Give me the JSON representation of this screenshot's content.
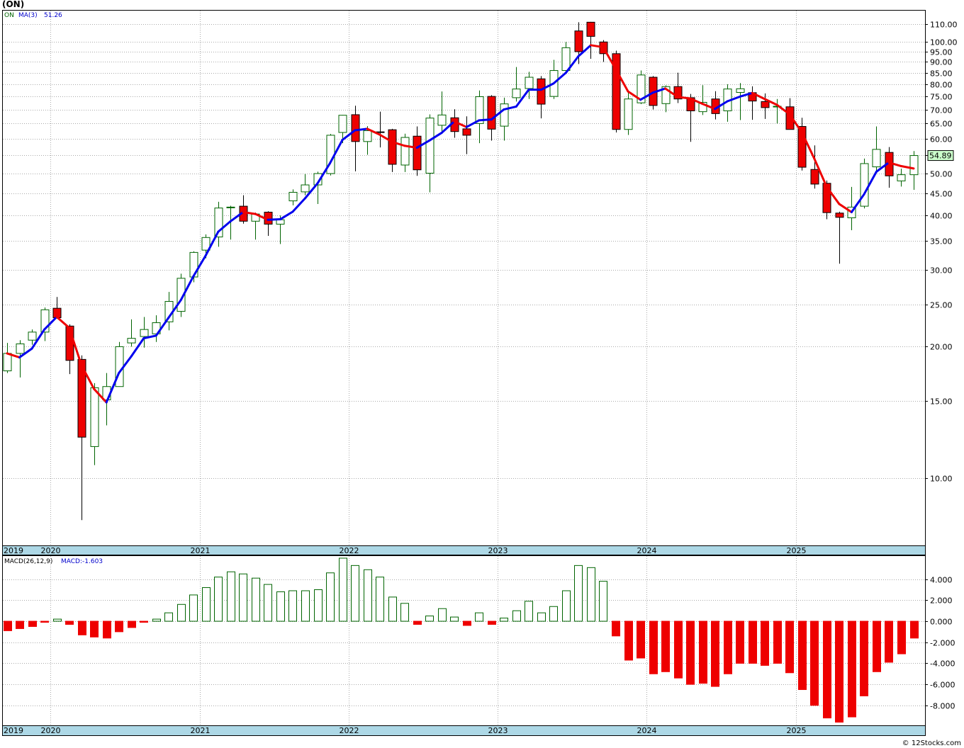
{
  "ticker_label": "(ON)",
  "credit": "© 12Stocks.com",
  "price_legend": {
    "symbol": "ON",
    "ma_label": "MA(3)",
    "ma_value": "51.26"
  },
  "macd_legend": {
    "label": "MACD(26,12,9)",
    "value_label": "MACD:-1.603"
  },
  "last_price_label": "54.89",
  "colors": {
    "up_candle_outline": "#006400",
    "down_candle_fill": "#ee0000",
    "ma_rising": "#0000ee",
    "ma_falling": "#ee0000",
    "axis_band": "#add8e6",
    "grid": "#aaaaaa",
    "last_price_badge": "#ccffcc"
  },
  "chart_data": [
    {
      "type": "candlestick",
      "scale": "log",
      "y_ticks": [
        "10.00",
        "15.00",
        "20.00",
        "25.00",
        "30.00",
        "35.00",
        "40.00",
        "45.00",
        "50.00",
        "55.00",
        "60.00",
        "65.00",
        "70.00",
        "75.00",
        "80.00",
        "85.00",
        "90.00",
        "95.00",
        "100.00",
        "110.00"
      ],
      "x_ticks": [
        "2019",
        "2020",
        "2021",
        "2022",
        "2023",
        "2024",
        "2025"
      ],
      "candles": [
        {
          "o": 17.6,
          "h": 20.4,
          "l": 17.4,
          "c": 19.3
        },
        {
          "o": 19.3,
          "h": 20.7,
          "l": 17.0,
          "c": 20.3
        },
        {
          "o": 20.7,
          "h": 21.9,
          "l": 20.2,
          "c": 21.6
        },
        {
          "o": 21.6,
          "h": 24.6,
          "l": 20.6,
          "c": 24.3
        },
        {
          "o": 24.5,
          "h": 26.0,
          "l": 23.2,
          "c": 23.3
        },
        {
          "o": 22.3,
          "h": 22.5,
          "l": 17.3,
          "c": 18.6
        },
        {
          "o": 18.7,
          "h": 19.1,
          "l": 8.0,
          "c": 12.4
        },
        {
          "o": 11.8,
          "h": 16.5,
          "l": 10.7,
          "c": 16.1
        },
        {
          "o": 15.1,
          "h": 17.4,
          "l": 13.2,
          "c": 16.2
        },
        {
          "o": 16.2,
          "h": 20.5,
          "l": 16.2,
          "c": 20.0
        },
        {
          "o": 20.4,
          "h": 23.1,
          "l": 20.0,
          "c": 20.9
        },
        {
          "o": 21.1,
          "h": 23.4,
          "l": 19.9,
          "c": 21.9
        },
        {
          "o": 21.4,
          "h": 23.6,
          "l": 20.5,
          "c": 22.7
        },
        {
          "o": 22.8,
          "h": 26.7,
          "l": 21.8,
          "c": 25.4
        },
        {
          "o": 24.1,
          "h": 29.4,
          "l": 23.4,
          "c": 28.7
        },
        {
          "o": 28.9,
          "h": 33.1,
          "l": 28.1,
          "c": 32.9
        },
        {
          "o": 33.3,
          "h": 36.2,
          "l": 31.9,
          "c": 35.6
        },
        {
          "o": 35.7,
          "h": 43.0,
          "l": 33.9,
          "c": 41.6
        },
        {
          "o": 41.7,
          "h": 42.1,
          "l": 35.2,
          "c": 41.8
        },
        {
          "o": 42.0,
          "h": 44.5,
          "l": 38.3,
          "c": 38.8
        },
        {
          "o": 38.8,
          "h": 40.6,
          "l": 35.2,
          "c": 40.3
        },
        {
          "o": 40.7,
          "h": 40.9,
          "l": 35.9,
          "c": 38.2
        },
        {
          "o": 38.2,
          "h": 40.0,
          "l": 34.4,
          "c": 39.1
        },
        {
          "o": 43.2,
          "h": 45.9,
          "l": 42.2,
          "c": 45.2
        },
        {
          "o": 45.3,
          "h": 49.8,
          "l": 44.5,
          "c": 47.0
        },
        {
          "o": 47.0,
          "h": 50.4,
          "l": 42.5,
          "c": 49.9
        },
        {
          "o": 49.9,
          "h": 61.5,
          "l": 49.4,
          "c": 61.1
        },
        {
          "o": 62.0,
          "h": 68.0,
          "l": 58.6,
          "c": 67.9
        },
        {
          "o": 68.1,
          "h": 71.4,
          "l": 50.5,
          "c": 59.1
        },
        {
          "o": 59.1,
          "h": 64.1,
          "l": 55.1,
          "c": 62.6
        },
        {
          "o": 62.2,
          "h": 69.2,
          "l": 57.3,
          "c": 62.1
        },
        {
          "o": 62.9,
          "h": 63.2,
          "l": 50.3,
          "c": 52.4
        },
        {
          "o": 52.2,
          "h": 61.6,
          "l": 50.3,
          "c": 60.4
        },
        {
          "o": 60.8,
          "h": 64.0,
          "l": 49.3,
          "c": 50.9
        },
        {
          "o": 50.0,
          "h": 68.2,
          "l": 45.2,
          "c": 66.9
        },
        {
          "o": 64.4,
          "h": 77.0,
          "l": 62.1,
          "c": 68.0
        },
        {
          "o": 67.0,
          "h": 70.1,
          "l": 60.3,
          "c": 62.3
        },
        {
          "o": 63.2,
          "h": 67.5,
          "l": 55.3,
          "c": 61.1
        },
        {
          "o": 65.0,
          "h": 77.4,
          "l": 58.6,
          "c": 74.9
        },
        {
          "o": 75.0,
          "h": 75.5,
          "l": 59.4,
          "c": 63.1
        },
        {
          "o": 64.1,
          "h": 74.5,
          "l": 59.4,
          "c": 72.1
        },
        {
          "o": 74.5,
          "h": 87.6,
          "l": 73.0,
          "c": 78.0
        },
        {
          "o": 78.2,
          "h": 85.4,
          "l": 74.0,
          "c": 83.0
        },
        {
          "o": 82.3,
          "h": 83.5,
          "l": 66.8,
          "c": 72.0
        },
        {
          "o": 75.0,
          "h": 91.0,
          "l": 74.0,
          "c": 86.0
        },
        {
          "o": 86.0,
          "h": 100.0,
          "l": 85.7,
          "c": 97.0
        },
        {
          "o": 106.0,
          "h": 111.0,
          "l": 89.0,
          "c": 95.0
        },
        {
          "o": 111.0,
          "h": 111.2,
          "l": 91.5,
          "c": 103.0
        },
        {
          "o": 100.0,
          "h": 101.0,
          "l": 90.0,
          "c": 94.0
        },
        {
          "o": 94.0,
          "h": 95.5,
          "l": 62.0,
          "c": 63.0
        },
        {
          "o": 63.0,
          "h": 77.0,
          "l": 61.2,
          "c": 74.0
        },
        {
          "o": 72.5,
          "h": 86.0,
          "l": 72.0,
          "c": 84.0
        },
        {
          "o": 83.0,
          "h": 83.5,
          "l": 70.0,
          "c": 71.5
        },
        {
          "o": 72.2,
          "h": 79.5,
          "l": 69.0,
          "c": 79.0
        },
        {
          "o": 79.0,
          "h": 85.0,
          "l": 72.4,
          "c": 74.0
        },
        {
          "o": 74.5,
          "h": 76.0,
          "l": 59.0,
          "c": 69.5
        },
        {
          "o": 69.2,
          "h": 79.6,
          "l": 68.0,
          "c": 72.7
        },
        {
          "o": 74.0,
          "h": 77.1,
          "l": 66.4,
          "c": 68.5
        },
        {
          "o": 69.5,
          "h": 80.0,
          "l": 65.6,
          "c": 78.0
        },
        {
          "o": 76.6,
          "h": 80.5,
          "l": 66.2,
          "c": 78.1
        },
        {
          "o": 76.5,
          "h": 79.1,
          "l": 66.3,
          "c": 73.2
        },
        {
          "o": 73.0,
          "h": 76.2,
          "l": 66.6,
          "c": 70.7
        },
        {
          "o": 71.0,
          "h": 74.0,
          "l": 65.0,
          "c": 71.2
        },
        {
          "o": 71.0,
          "h": 74.3,
          "l": 63.0,
          "c": 63.0
        },
        {
          "o": 64.0,
          "h": 67.0,
          "l": 50.7,
          "c": 51.6
        },
        {
          "o": 51.0,
          "h": 57.9,
          "l": 46.1,
          "c": 47.2
        },
        {
          "o": 47.4,
          "h": 48.1,
          "l": 39.2,
          "c": 40.6
        },
        {
          "o": 40.5,
          "h": 40.8,
          "l": 31.0,
          "c": 39.6
        },
        {
          "o": 39.5,
          "h": 46.5,
          "l": 37.0,
          "c": 41.8
        },
        {
          "o": 42.0,
          "h": 54.0,
          "l": 41.5,
          "c": 52.6
        },
        {
          "o": 51.7,
          "h": 64.0,
          "l": 50.5,
          "c": 56.7
        },
        {
          "o": 55.8,
          "h": 57.4,
          "l": 46.3,
          "c": 49.3
        },
        {
          "o": 48.0,
          "h": 51.2,
          "l": 46.6,
          "c": 49.6
        },
        {
          "o": 49.6,
          "h": 56.2,
          "l": 45.8,
          "c": 54.89
        }
      ],
      "ma3": [
        19.3,
        18.9,
        19.8,
        21.9,
        23.4,
        22.1,
        18.1,
        16.0,
        14.9,
        17.4,
        19.0,
        20.9,
        21.2,
        23.3,
        25.6,
        29.0,
        32.4,
        36.7,
        38.8,
        40.7,
        40.3,
        39.1,
        39.2,
        40.8,
        43.8,
        47.4,
        52.7,
        59.6,
        62.7,
        63.2,
        61.3,
        59.0,
        57.8,
        57.2,
        59.4,
        61.9,
        65.7,
        63.8,
        66.1,
        66.4,
        70.0,
        71.1,
        77.7,
        77.7,
        80.3,
        85.0,
        92.7,
        98.3,
        97.3,
        86.7,
        77.0,
        73.7,
        76.5,
        78.2,
        74.8,
        74.2,
        72.1,
        70.2,
        73.1,
        74.9,
        76.4,
        74.0,
        71.7,
        68.3,
        62.0,
        54.0,
        46.5,
        42.5,
        40.7,
        44.7,
        50.4,
        52.9,
        51.9,
        51.26
      ],
      "y_range": [
        7.0,
        118.0
      ]
    },
    {
      "type": "bar",
      "title": "MACD(26,12,9)",
      "y_ticks": [
        "4.000",
        "2.000",
        "0.000",
        "-2.000",
        "-4.000",
        "-6.000",
        "-8.000"
      ],
      "x_ticks": [
        "2019",
        "2020",
        "2021",
        "2022",
        "2023",
        "2024",
        "2025"
      ],
      "values": [
        -0.9,
        -0.7,
        -0.5,
        -0.1,
        0.2,
        -0.3,
        -1.3,
        -1.5,
        -1.6,
        -1.0,
        -0.6,
        -0.1,
        0.2,
        0.8,
        1.6,
        2.5,
        3.2,
        4.2,
        4.7,
        4.5,
        4.1,
        3.5,
        2.8,
        2.9,
        2.9,
        3.0,
        4.6,
        6.0,
        5.3,
        4.9,
        4.2,
        2.3,
        1.7,
        -0.3,
        0.5,
        1.2,
        0.4,
        -0.4,
        0.8,
        -0.3,
        0.3,
        1.0,
        1.9,
        0.8,
        1.4,
        2.9,
        5.3,
        5.1,
        3.8,
        -1.4,
        -3.7,
        -3.5,
        -5.0,
        -4.8,
        -5.4,
        -6.0,
        -5.9,
        -6.2,
        -5.0,
        -4.0,
        -4.0,
        -4.2,
        -4.0,
        -4.9,
        -6.5,
        -8.0,
        -9.2,
        -9.6,
        -9.1,
        -7.1,
        -4.8,
        -3.9,
        -3.1,
        -1.603
      ],
      "y_range": [
        -9.9,
        6.2
      ]
    }
  ]
}
